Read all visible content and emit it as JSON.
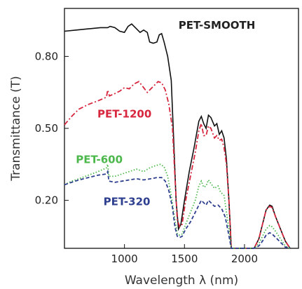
{
  "chart_data": {
    "type": "line",
    "title": "",
    "xlabel": "Wavelength λ (nm)",
    "ylabel": "Transmittance (T)",
    "xlim": [
      500,
      2450
    ],
    "ylim": [
      0.0,
      1.0
    ],
    "xticks": [
      1000,
      1500,
      2000
    ],
    "yticks": [
      0.2,
      0.5,
      0.8
    ],
    "ytick_labels": [
      "0.20",
      "0.50",
      "0.80"
    ],
    "grid": false,
    "colors": {
      "PET-SMOOTH": "#111111",
      "PET-1200": "#d7263d",
      "PET-600": "#4cb84c",
      "PET-320": "#2e3f8f"
    },
    "series": [
      {
        "name": "PET-SMOOTH",
        "style": "solid",
        "points": [
          [
            500,
            0.905
          ],
          [
            600,
            0.91
          ],
          [
            700,
            0.915
          ],
          [
            800,
            0.92
          ],
          [
            860,
            0.92
          ],
          [
            880,
            0.925
          ],
          [
            920,
            0.92
          ],
          [
            960,
            0.905
          ],
          [
            1000,
            0.9
          ],
          [
            1030,
            0.925
          ],
          [
            1060,
            0.935
          ],
          [
            1100,
            0.915
          ],
          [
            1130,
            0.9
          ],
          [
            1160,
            0.91
          ],
          [
            1190,
            0.9
          ],
          [
            1210,
            0.86
          ],
          [
            1240,
            0.855
          ],
          [
            1270,
            0.86
          ],
          [
            1290,
            0.89
          ],
          [
            1310,
            0.895
          ],
          [
            1330,
            0.86
          ],
          [
            1360,
            0.8
          ],
          [
            1390,
            0.7
          ],
          [
            1410,
            0.45
          ],
          [
            1430,
            0.2
          ],
          [
            1450,
            0.08
          ],
          [
            1470,
            0.1
          ],
          [
            1500,
            0.2
          ],
          [
            1540,
            0.32
          ],
          [
            1580,
            0.42
          ],
          [
            1620,
            0.53
          ],
          [
            1640,
            0.55
          ],
          [
            1660,
            0.52
          ],
          [
            1680,
            0.5
          ],
          [
            1700,
            0.555
          ],
          [
            1720,
            0.545
          ],
          [
            1750,
            0.51
          ],
          [
            1770,
            0.52
          ],
          [
            1790,
            0.475
          ],
          [
            1810,
            0.49
          ],
          [
            1830,
            0.46
          ],
          [
            1850,
            0.37
          ],
          [
            1870,
            0.2
          ],
          [
            1890,
            0.0
          ],
          [
            2000,
            0.0
          ],
          [
            2080,
            0.0
          ],
          [
            2120,
            0.04
          ],
          [
            2150,
            0.1
          ],
          [
            2180,
            0.16
          ],
          [
            2210,
            0.18
          ],
          [
            2230,
            0.175
          ],
          [
            2260,
            0.13
          ],
          [
            2300,
            0.08
          ],
          [
            2340,
            0.03
          ],
          [
            2380,
            0.0
          ]
        ]
      },
      {
        "name": "PET-1200",
        "style": "dashdot",
        "points": [
          [
            500,
            0.515
          ],
          [
            560,
            0.55
          ],
          [
            620,
            0.58
          ],
          [
            700,
            0.6
          ],
          [
            780,
            0.615
          ],
          [
            850,
            0.63
          ],
          [
            860,
            0.66
          ],
          [
            875,
            0.635
          ],
          [
            920,
            0.645
          ],
          [
            960,
            0.655
          ],
          [
            1000,
            0.67
          ],
          [
            1040,
            0.665
          ],
          [
            1080,
            0.685
          ],
          [
            1120,
            0.695
          ],
          [
            1160,
            0.67
          ],
          [
            1190,
            0.65
          ],
          [
            1220,
            0.665
          ],
          [
            1250,
            0.68
          ],
          [
            1280,
            0.695
          ],
          [
            1310,
            0.69
          ],
          [
            1340,
            0.66
          ],
          [
            1370,
            0.6
          ],
          [
            1400,
            0.5
          ],
          [
            1420,
            0.3
          ],
          [
            1440,
            0.12
          ],
          [
            1460,
            0.09
          ],
          [
            1480,
            0.1
          ],
          [
            1510,
            0.2
          ],
          [
            1550,
            0.3
          ],
          [
            1590,
            0.4
          ],
          [
            1620,
            0.49
          ],
          [
            1640,
            0.52
          ],
          [
            1660,
            0.47
          ],
          [
            1680,
            0.47
          ],
          [
            1700,
            0.51
          ],
          [
            1720,
            0.5
          ],
          [
            1750,
            0.46
          ],
          [
            1770,
            0.47
          ],
          [
            1790,
            0.45
          ],
          [
            1810,
            0.455
          ],
          [
            1830,
            0.42
          ],
          [
            1850,
            0.35
          ],
          [
            1870,
            0.2
          ],
          [
            1890,
            0.0
          ],
          [
            2000,
            0.0
          ],
          [
            2080,
            0.0
          ],
          [
            2120,
            0.04
          ],
          [
            2150,
            0.1
          ],
          [
            2180,
            0.16
          ],
          [
            2210,
            0.175
          ],
          [
            2230,
            0.17
          ],
          [
            2260,
            0.13
          ],
          [
            2300,
            0.08
          ],
          [
            2340,
            0.03
          ],
          [
            2380,
            0.0
          ]
        ]
      },
      {
        "name": "PET-600",
        "style": "dotted",
        "points": [
          [
            500,
            0.265
          ],
          [
            560,
            0.28
          ],
          [
            620,
            0.29
          ],
          [
            700,
            0.305
          ],
          [
            780,
            0.32
          ],
          [
            850,
            0.335
          ],
          [
            860,
            0.35
          ],
          [
            870,
            0.3
          ],
          [
            920,
            0.3
          ],
          [
            980,
            0.31
          ],
          [
            1040,
            0.32
          ],
          [
            1100,
            0.33
          ],
          [
            1160,
            0.32
          ],
          [
            1210,
            0.335
          ],
          [
            1260,
            0.345
          ],
          [
            1300,
            0.35
          ],
          [
            1330,
            0.34
          ],
          [
            1360,
            0.3
          ],
          [
            1390,
            0.22
          ],
          [
            1420,
            0.12
          ],
          [
            1440,
            0.06
          ],
          [
            1460,
            0.055
          ],
          [
            1480,
            0.06
          ],
          [
            1510,
            0.1
          ],
          [
            1550,
            0.15
          ],
          [
            1590,
            0.2
          ],
          [
            1620,
            0.26
          ],
          [
            1640,
            0.28
          ],
          [
            1660,
            0.255
          ],
          [
            1680,
            0.26
          ],
          [
            1700,
            0.285
          ],
          [
            1720,
            0.27
          ],
          [
            1750,
            0.25
          ],
          [
            1780,
            0.26
          ],
          [
            1800,
            0.235
          ],
          [
            1830,
            0.22
          ],
          [
            1850,
            0.15
          ],
          [
            1870,
            0.08
          ],
          [
            1890,
            0.0
          ],
          [
            2000,
            0.0
          ],
          [
            2080,
            0.0
          ],
          [
            2120,
            0.02
          ],
          [
            2150,
            0.05
          ],
          [
            2180,
            0.08
          ],
          [
            2210,
            0.095
          ],
          [
            2230,
            0.09
          ],
          [
            2260,
            0.07
          ],
          [
            2300,
            0.04
          ],
          [
            2340,
            0.01
          ],
          [
            2380,
            0.0
          ]
        ]
      },
      {
        "name": "PET-320",
        "style": "dashed",
        "points": [
          [
            500,
            0.265
          ],
          [
            560,
            0.275
          ],
          [
            620,
            0.285
          ],
          [
            700,
            0.295
          ],
          [
            780,
            0.305
          ],
          [
            850,
            0.31
          ],
          [
            860,
            0.32
          ],
          [
            870,
            0.28
          ],
          [
            920,
            0.275
          ],
          [
            980,
            0.28
          ],
          [
            1040,
            0.285
          ],
          [
            1100,
            0.29
          ],
          [
            1160,
            0.285
          ],
          [
            1220,
            0.29
          ],
          [
            1270,
            0.295
          ],
          [
            1310,
            0.295
          ],
          [
            1340,
            0.28
          ],
          [
            1370,
            0.24
          ],
          [
            1400,
            0.17
          ],
          [
            1420,
            0.09
          ],
          [
            1440,
            0.05
          ],
          [
            1460,
            0.045
          ],
          [
            1480,
            0.05
          ],
          [
            1510,
            0.08
          ],
          [
            1550,
            0.11
          ],
          [
            1590,
            0.15
          ],
          [
            1620,
            0.18
          ],
          [
            1640,
            0.2
          ],
          [
            1660,
            0.19
          ],
          [
            1680,
            0.18
          ],
          [
            1700,
            0.2
          ],
          [
            1720,
            0.19
          ],
          [
            1750,
            0.175
          ],
          [
            1780,
            0.18
          ],
          [
            1810,
            0.165
          ],
          [
            1840,
            0.13
          ],
          [
            1860,
            0.08
          ],
          [
            1890,
            0.0
          ],
          [
            2000,
            0.0
          ],
          [
            2080,
            0.0
          ],
          [
            2120,
            0.01
          ],
          [
            2150,
            0.03
          ],
          [
            2180,
            0.055
          ],
          [
            2210,
            0.065
          ],
          [
            2230,
            0.06
          ],
          [
            2260,
            0.045
          ],
          [
            2300,
            0.025
          ],
          [
            2340,
            0.005
          ],
          [
            2380,
            0.0
          ]
        ]
      }
    ],
    "series_labels": [
      {
        "name": "PET-SMOOTH",
        "text": "PET-SMOOTH",
        "x": 1770,
        "y": 0.915
      },
      {
        "name": "PET-1200",
        "text": "PET-1200",
        "x": 1000,
        "y": 0.545
      },
      {
        "name": "PET-600",
        "text": "PET-600",
        "x": 790,
        "y": 0.355
      },
      {
        "name": "PET-320",
        "text": "PET-320",
        "x": 1020,
        "y": 0.18
      }
    ]
  }
}
